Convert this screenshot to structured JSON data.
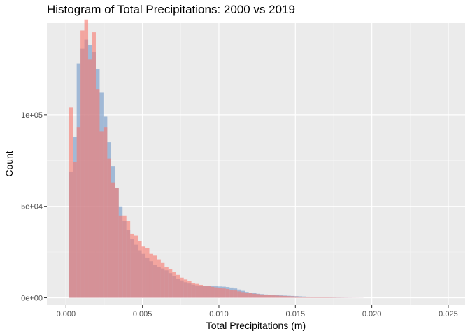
{
  "chart_data": {
    "type": "histogram",
    "title": "Histogram of Total Precipitations: 2000 vs 2019",
    "xlabel": "Total Precipitations (m)",
    "ylabel": "Count",
    "xlim": [
      -0.00125,
      0.0261
    ],
    "ylim": [
      -4000,
      150000
    ],
    "x_ticks": [
      0,
      0.005,
      0.01,
      0.015,
      0.02,
      0.025
    ],
    "x_tick_labels": [
      "0.000",
      "0.005",
      "0.010",
      "0.015",
      "0.020",
      "0.025"
    ],
    "y_ticks": [
      0,
      50000,
      100000
    ],
    "y_tick_labels": [
      "0e+00",
      "5e+04",
      "1e+05"
    ],
    "bin_start": 0.0002,
    "bin_width": 0.00025,
    "grid": true,
    "legend": "none",
    "series": [
      {
        "color": "#6f97c8",
        "values": [
          69000,
          88000,
          128000,
          136000,
          141000,
          138000,
          134000,
          125000,
          112000,
          99000,
          85000,
          72000,
          60000,
          50000,
          42000,
          37000,
          32000,
          29000,
          26000,
          24000,
          22000,
          20000,
          18000,
          17000,
          16000,
          15000,
          13500,
          12000,
          10500,
          9500,
          8500,
          7800,
          7200,
          6800,
          6600,
          6500,
          6400,
          6300,
          6300,
          6200,
          6100,
          5900,
          5600,
          5100,
          4500,
          3800,
          3200,
          2800,
          2500,
          2200,
          2000,
          1800,
          1600,
          1500,
          1400,
          1300,
          1200,
          1100,
          1000,
          900,
          800,
          700,
          600,
          500,
          400,
          350,
          300,
          250,
          200,
          180,
          150,
          120,
          100,
          80,
          60,
          50,
          40
        ]
      },
      {
        "color": "#f8766d",
        "values": [
          104000,
          74000,
          93000,
          146000,
          152000,
          130000,
          145000,
          114000,
          91000,
          93000,
          76000,
          63000,
          60000,
          45000,
          45000,
          42000,
          35000,
          34000,
          31000,
          28000,
          27000,
          24000,
          23000,
          21000,
          19000,
          17000,
          15500,
          14000,
          12500,
          11000,
          10000,
          9000,
          8200,
          7600,
          7100,
          6700,
          6300,
          6000,
          5700,
          5400,
          5100,
          4800,
          4400,
          4000,
          3500,
          3100,
          2800,
          2500,
          2200,
          2000,
          1800,
          1600,
          1500,
          1300,
          1200,
          1100,
          1000,
          900,
          800,
          700,
          600,
          500,
          450,
          400,
          350,
          300,
          250,
          200,
          180,
          150,
          120,
          100,
          80,
          60,
          50,
          40,
          30
        ]
      }
    ]
  }
}
